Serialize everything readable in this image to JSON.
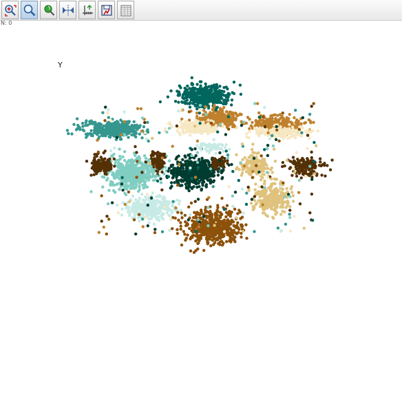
{
  "toolbar": {
    "buttons": [
      {
        "name": "zoom-in-button",
        "icon": "zoom-in-icon",
        "active": false
      },
      {
        "name": "zoom-button",
        "icon": "magnifier-icon",
        "active": true
      },
      {
        "name": "pan-button",
        "icon": "hand-pan-icon",
        "active": false
      },
      {
        "name": "fit-view-button",
        "icon": "fit-arrows-icon",
        "active": false
      },
      {
        "name": "axes-settings-button",
        "icon": "axes-ruler-icon",
        "active": false
      },
      {
        "name": "export-button",
        "icon": "save-export-icon",
        "active": false
      },
      {
        "name": "data-table-button",
        "icon": "table-grid-icon",
        "active": false
      }
    ]
  },
  "coord_readout": "N: 0",
  "y_axis_label": "Y",
  "chart_data": {
    "type": "scatter",
    "title": "",
    "xlabel": "",
    "ylabel": "Y",
    "legend": "none",
    "grid": false,
    "clusters": [
      {
        "color": "#00665e",
        "center": [
          298,
          139
        ],
        "spread": [
          34,
          14
        ],
        "count": 420
      },
      {
        "color": "#35978f",
        "center": [
          162,
          188
        ],
        "spread": [
          40,
          11
        ],
        "count": 380
      },
      {
        "color": "#bf812d",
        "center": [
          318,
          172
        ],
        "spread": [
          26,
          11
        ],
        "count": 280
      },
      {
        "color": "#bf812d",
        "center": [
          400,
          180
        ],
        "spread": [
          34,
          10
        ],
        "count": 280
      },
      {
        "color": "#f6e8c3",
        "center": [
          283,
          185
        ],
        "spread": [
          26,
          8
        ],
        "count": 180
      },
      {
        "color": "#f6e8c3",
        "center": [
          410,
          192
        ],
        "spread": [
          36,
          8
        ],
        "count": 160
      },
      {
        "color": "#80cdc1",
        "center": [
          192,
          253
        ],
        "spread": [
          32,
          22
        ],
        "count": 460
      },
      {
        "color": "#003c30",
        "center": [
          282,
          250
        ],
        "spread": [
          30,
          20
        ],
        "count": 500
      },
      {
        "color": "#543005",
        "center": [
          148,
          240
        ],
        "spread": [
          14,
          12
        ],
        "count": 130
      },
      {
        "color": "#543005",
        "center": [
          231,
          232
        ],
        "spread": [
          10,
          12
        ],
        "count": 90
      },
      {
        "color": "#543005",
        "center": [
          318,
          236
        ],
        "spread": [
          10,
          7
        ],
        "count": 70
      },
      {
        "color": "#543005",
        "center": [
          444,
          243
        ],
        "spread": [
          22,
          11
        ],
        "count": 170
      },
      {
        "color": "#dfc27d",
        "center": [
          370,
          240
        ],
        "spread": [
          20,
          14
        ],
        "count": 180
      },
      {
        "color": "#dfc27d",
        "center": [
          395,
          287
        ],
        "spread": [
          22,
          20
        ],
        "count": 280
      },
      {
        "color": "#c7eae5",
        "center": [
          218,
          303
        ],
        "spread": [
          34,
          14
        ],
        "count": 320
      },
      {
        "color": "#8c510a",
        "center": [
          308,
          330
        ],
        "spread": [
          38,
          22
        ],
        "count": 520
      },
      {
        "color": "#c7eae5",
        "center": [
          310,
          214
        ],
        "spread": [
          20,
          6
        ],
        "count": 60
      }
    ],
    "noise_colors": [
      "#003c30",
      "#00665e",
      "#35978f",
      "#80cdc1",
      "#c7eae5",
      "#f6e8c3",
      "#dfc27d",
      "#bf812d",
      "#8c510a",
      "#543005"
    ],
    "noise_count": 260
  }
}
